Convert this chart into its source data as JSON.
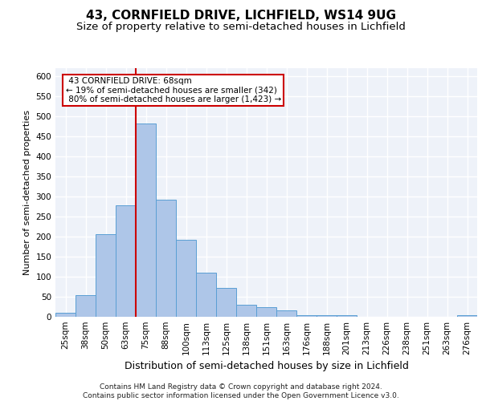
{
  "title_line1": "43, CORNFIELD DRIVE, LICHFIELD, WS14 9UG",
  "title_line2": "Size of property relative to semi-detached houses in Lichfield",
  "xlabel": "Distribution of semi-detached houses by size in Lichfield",
  "ylabel": "Number of semi-detached properties",
  "footer_line1": "Contains HM Land Registry data © Crown copyright and database right 2024.",
  "footer_line2": "Contains public sector information licensed under the Open Government Licence v3.0.",
  "categories": [
    "25sqm",
    "38sqm",
    "50sqm",
    "63sqm",
    "75sqm",
    "88sqm",
    "100sqm",
    "113sqm",
    "125sqm",
    "138sqm",
    "151sqm",
    "163sqm",
    "176sqm",
    "188sqm",
    "201sqm",
    "213sqm",
    "226sqm",
    "238sqm",
    "251sqm",
    "263sqm",
    "276sqm"
  ],
  "values": [
    10,
    55,
    207,
    278,
    483,
    293,
    192,
    111,
    73,
    30,
    25,
    16,
    4,
    5,
    4,
    0,
    0,
    0,
    0,
    0,
    4
  ],
  "bar_color": "#aec6e8",
  "bar_edge_color": "#5a9fd4",
  "property_label": "43 CORNFIELD DRIVE: 68sqm",
  "pct_smaller": 19,
  "n_smaller": 342,
  "pct_larger": 80,
  "n_larger": 1423,
  "vline_color": "#cc0000",
  "vline_x_index": 3.5,
  "annotation_box_color": "#cc0000",
  "ylim": [
    0,
    620
  ],
  "yticks": [
    0,
    50,
    100,
    150,
    200,
    250,
    300,
    350,
    400,
    450,
    500,
    550,
    600
  ],
  "plot_bg_color": "#eef2f9",
  "grid_color": "#ffffff",
  "title1_fontsize": 11,
  "title2_fontsize": 9.5,
  "xlabel_fontsize": 9,
  "ylabel_fontsize": 8,
  "tick_fontsize": 7.5,
  "ann_fontsize": 7.5
}
